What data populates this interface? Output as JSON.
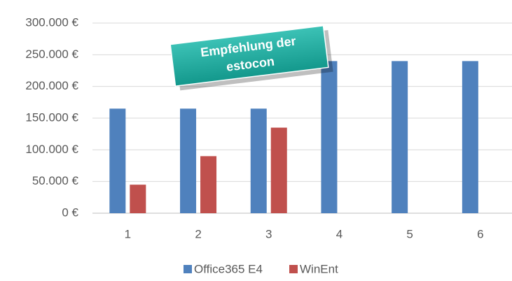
{
  "chart_data": {
    "type": "bar",
    "annotation": [
      "Empfehlung der",
      "estocon"
    ],
    "categories": [
      "1",
      "2",
      "3",
      "4",
      "5",
      "6"
    ],
    "series": [
      {
        "name": "Office365 E4",
        "color": "#4f81bd",
        "values": [
          165000,
          165000,
          165000,
          240000,
          240000,
          240000
        ]
      },
      {
        "name": "WinEnt",
        "color": "#c0504d",
        "values": [
          45000,
          90000,
          135000,
          null,
          null,
          null
        ]
      }
    ],
    "ylim": [
      0,
      300000
    ],
    "yticks": [
      {
        "value": 0,
        "label": "0 €"
      },
      {
        "value": 50000,
        "label": "50.000 €"
      },
      {
        "value": 100000,
        "label": "100.000 €"
      },
      {
        "value": 150000,
        "label": "150.000 €"
      },
      {
        "value": 200000,
        "label": "200.000 €"
      },
      {
        "value": 250000,
        "label": "250.000 €"
      },
      {
        "value": 300000,
        "label": "300.000 €"
      }
    ],
    "grid": true,
    "legend": "bottom"
  }
}
